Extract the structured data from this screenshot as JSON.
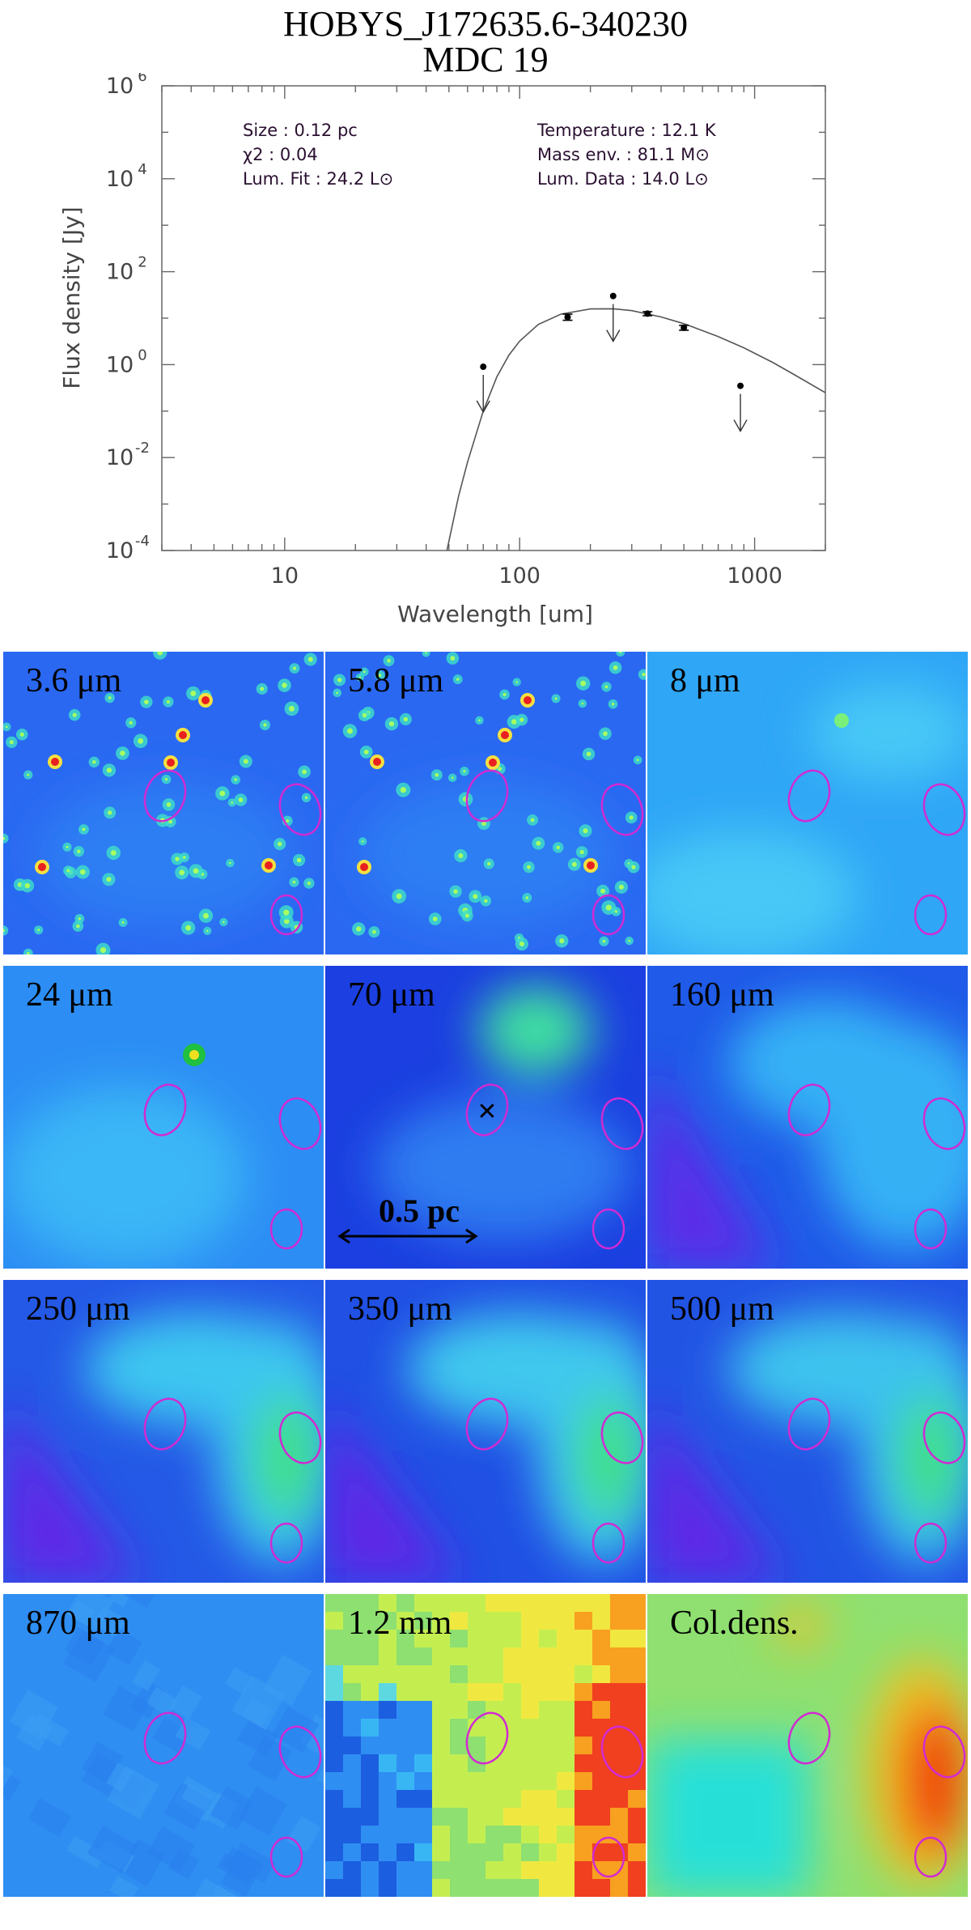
{
  "title": {
    "line1": "HOBYS_J172635.6-340230",
    "line2": "MDC 19"
  },
  "sed": {
    "annotations": {
      "size": "Size :   0.12 pc",
      "chi2": "χ2 :   0.04",
      "lum_fit": "Lum. Fit :    24.2 L⊙",
      "temperature": "Temperature :   12.1 K",
      "mass": "Mass env.   :   81.1 M⊙",
      "lum_data": "Lum. Data :     14.0 L⊙"
    }
  },
  "chart_data": {
    "type": "scatter",
    "xlabel": "Wavelength [um]",
    "ylabel": "Flux density [Jy]",
    "xscale": "log",
    "yscale": "log",
    "xlim": [
      3,
      2000
    ],
    "ylim": [
      0.0001,
      1000000
    ],
    "x_ticks": [
      {
        "value": 10,
        "label": "10"
      },
      {
        "value": 100,
        "label": "100"
      },
      {
        "value": 1000,
        "label": "1000"
      }
    ],
    "y_ticks": [
      {
        "value": 0.0001,
        "base": "10",
        "exp": "-4"
      },
      {
        "value": 0.01,
        "base": "10",
        "exp": "-2"
      },
      {
        "value": 1,
        "base": "10",
        "exp": "0"
      },
      {
        "value": 100,
        "base": "10",
        "exp": "2"
      },
      {
        "value": 10000,
        "base": "10",
        "exp": "4"
      },
      {
        "value": 1000000,
        "base": "10",
        "exp": "6"
      }
    ],
    "detections": [
      {
        "x": 160,
        "y": 10.5,
        "err_low": 9.0,
        "err_high": 12.2
      },
      {
        "x": 350,
        "y": 12.5,
        "err_low": 11.3,
        "err_high": 13.8
      },
      {
        "x": 500,
        "y": 6.2,
        "err_low": 5.5,
        "err_high": 7.0
      }
    ],
    "upper_limits": [
      {
        "x": 70,
        "y": 0.9
      },
      {
        "x": 250,
        "y": 30
      },
      {
        "x": 870,
        "y": 0.35
      }
    ],
    "fit_curve": [
      [
        48,
        6e-05
      ],
      [
        55,
        0.0015
      ],
      [
        60,
        0.008
      ],
      [
        70,
        0.1
      ],
      [
        80,
        0.55
      ],
      [
        90,
        1.6
      ],
      [
        100,
        3.2
      ],
      [
        120,
        7.3
      ],
      [
        150,
        12.2
      ],
      [
        200,
        15.8
      ],
      [
        250,
        15.9
      ],
      [
        300,
        14.5
      ],
      [
        400,
        10.6
      ],
      [
        500,
        7.6
      ],
      [
        700,
        4.0
      ],
      [
        900,
        2.3
      ],
      [
        1200,
        1.1
      ],
      [
        1500,
        0.58
      ],
      [
        2000,
        0.25
      ]
    ]
  },
  "panels": [
    {
      "label": "3.6 μm",
      "bg": "#2a68f2",
      "haze": "#2f86f4",
      "style": "stars"
    },
    {
      "label": "5.8 μm",
      "bg": "#2a68f2",
      "haze": "#2f86f4",
      "style": "stars"
    },
    {
      "label": "8 μm",
      "bg": "#2fa6f6",
      "haze": "#46c8f6",
      "style": "smooth8"
    },
    {
      "label": "24 μm",
      "bg": "#2c8ef4",
      "haze": "#3bb6f6",
      "style": "smooth24"
    },
    {
      "label": "70 μm",
      "bg": "#1b3fe0",
      "haze": "#2d7cf0",
      "style": "smooth70"
    },
    {
      "label": "160 μm",
      "bg": "#1f5ae8",
      "haze": "#34b0f5",
      "style": "smooth160"
    },
    {
      "label": "250 μm",
      "bg": "#2458e6",
      "haze": "#3cc6f0",
      "style": "submm"
    },
    {
      "label": "350 μm",
      "bg": "#2050e4",
      "haze": "#40c8ee",
      "style": "submm"
    },
    {
      "label": "500 μm",
      "bg": "#2254e4",
      "haze": "#3cc2ee",
      "style": "submm"
    },
    {
      "label": "870 μm",
      "bg": "#2f8ef2",
      "haze": "#3aa2f4",
      "style": "noise"
    },
    {
      "label": "1.2 mm",
      "bg": "#7ad46a",
      "haze": "#5ec8e8",
      "style": "pixels"
    },
    {
      "label": "Col.dens.",
      "bg": "#8fe070",
      "haze": "#26e0d8",
      "style": "coldens"
    }
  ],
  "scale_bar": {
    "label": "0.5 pc"
  },
  "colors": {
    "ellipse": "#d22ad2",
    "curve": "#555555",
    "points": "#000000"
  }
}
